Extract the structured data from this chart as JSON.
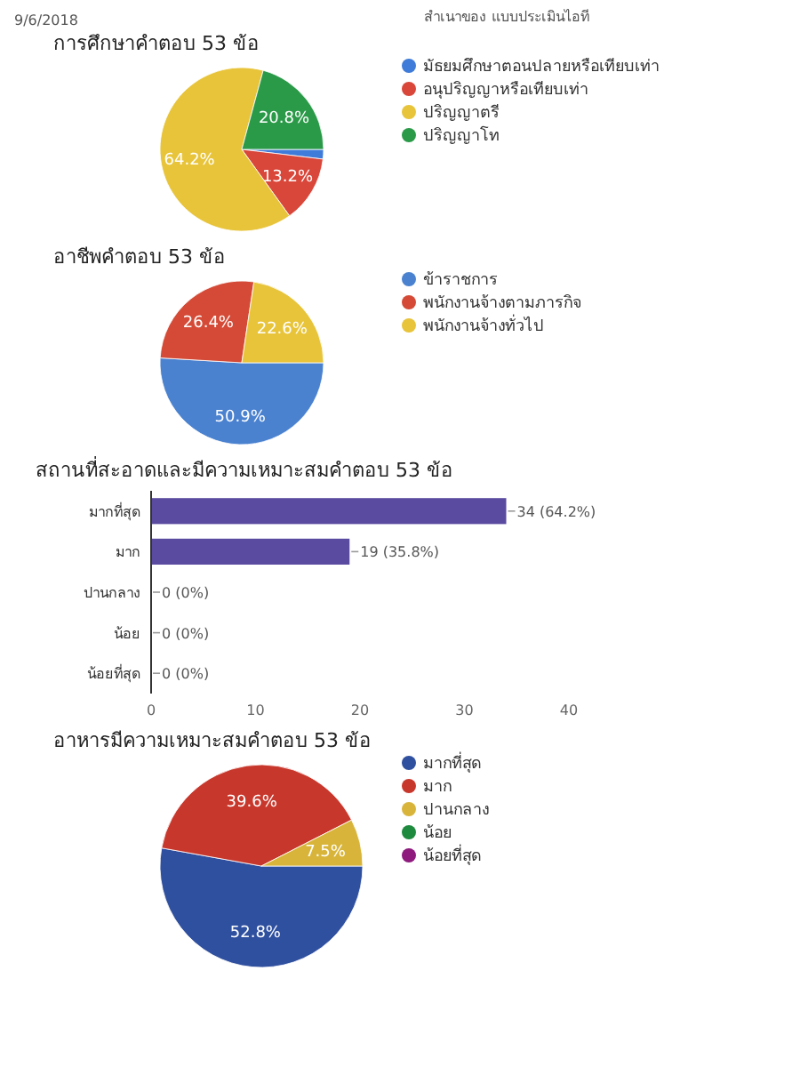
{
  "chart_data": [
    {
      "type": "pie",
      "title": "การศึกษาคำตอบ 53 ข้อ",
      "annotations": [
        "9/6/2018",
        "สำเนาของ แบบประเมินไอที"
      ],
      "categories": [
        "มัธยมศึกษาตอนปลายหรือเทียบเท่า",
        "อนุปริญญาหรือเทียบเท่า",
        "ปริญญาตรี",
        "ปริญญาโท"
      ],
      "values": [
        1.9,
        13.2,
        64.2,
        20.8
      ],
      "value_labels": [
        null,
        "13.2%",
        "64.2%",
        "20.8%"
      ],
      "colors": [
        "#3f7bd8",
        "#d9463a",
        "#e8c43a",
        "#2a9a48"
      ],
      "legend": "right"
    },
    {
      "type": "pie",
      "title": "อาชีพคำตอบ 53 ข้อ",
      "categories": [
        "ข้าราชการ",
        "พนักงานจ้างตามภารกิจ",
        "พนักงานจ้างทั่วไป"
      ],
      "values": [
        50.9,
        26.4,
        22.6
      ],
      "value_labels": [
        "50.9%",
        "26.4%",
        "22.6%"
      ],
      "colors": [
        "#4a82d0",
        "#d44a36",
        "#e8c43a"
      ],
      "legend": "right"
    },
    {
      "type": "bar",
      "orientation": "horizontal",
      "title": "สถานที่สะอาดและมีความเหมาะสมคำตอบ 53 ข้อ",
      "categories": [
        "มากที่สุด",
        "มาก",
        "ปานกลาง",
        "น้อย",
        "น้อยที่สุด"
      ],
      "values": [
        34,
        19,
        0,
        0,
        0
      ],
      "value_labels": [
        "34 (64.2%)",
        "19 (35.8%)",
        "0 (0%)",
        "0 (0%)",
        "0 (0%)"
      ],
      "color": "#5a4aa0",
      "xlim": [
        0,
        40
      ],
      "xticks": [
        0,
        10,
        20,
        30,
        40
      ]
    },
    {
      "type": "pie",
      "title": "อาหารมีความเหมาะสมคำตอบ 53 ข้อ",
      "categories": [
        "มากที่สุด",
        "มาก",
        "ปานกลาง",
        "น้อย",
        "น้อยที่สุด"
      ],
      "values": [
        52.8,
        39.6,
        7.5,
        0,
        0
      ],
      "value_labels": [
        "52.8%",
        "39.6%",
        "7.5%",
        null,
        null
      ],
      "colors": [
        "#2f4f9f",
        "#c8372c",
        "#d8b53a",
        "#1e8a3e",
        "#8e1a7e"
      ],
      "legend": "right"
    }
  ]
}
